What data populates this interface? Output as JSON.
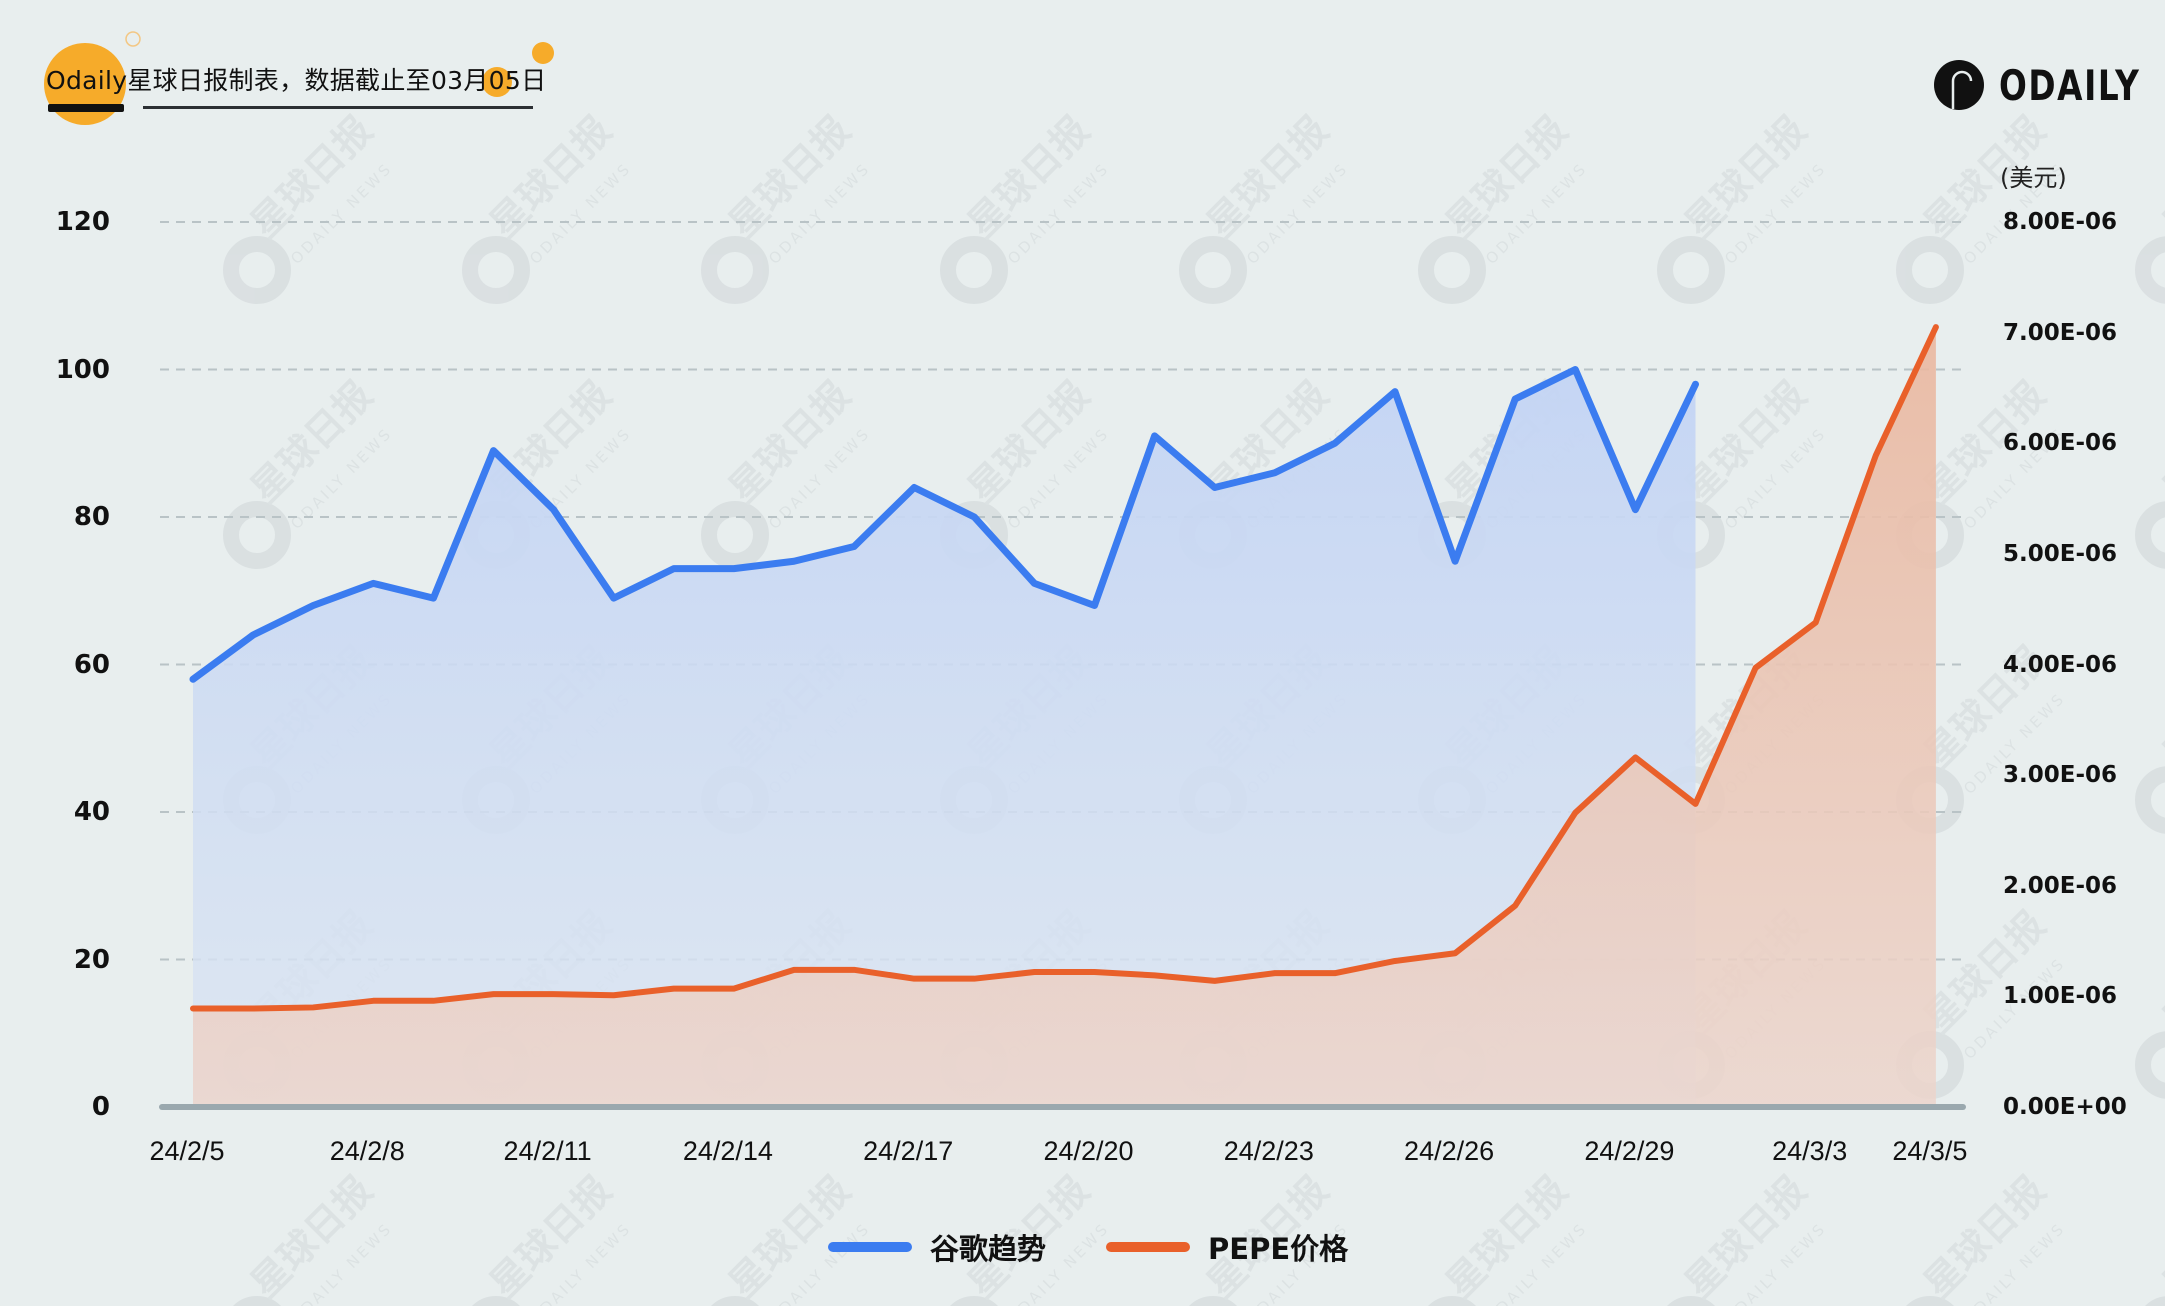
{
  "header": {
    "title_brand": "Odaily",
    "title_rest": "星球日报制表，数据截止至03月05日",
    "logo_text": "ODAILY",
    "accent_color": "#f6ab2a"
  },
  "watermark": {
    "text_cn": "星球日报",
    "text_en": "ODAILY NEWS"
  },
  "legend": {
    "items": [
      {
        "label": "谷歌趋势",
        "color": "#3b7cf0"
      },
      {
        "label": "PEPE价格",
        "color": "#e9602a"
      }
    ]
  },
  "axes": {
    "left_ticks": [
      "0",
      "20",
      "40",
      "60",
      "80",
      "100",
      "120"
    ],
    "right_unit": "(美元)",
    "right_ticks": [
      "0.00E+00",
      "1.00E-06",
      "2.00E-06",
      "3.00E-06",
      "4.00E-06",
      "5.00E-06",
      "6.00E-06",
      "7.00E-06",
      "8.00E-06"
    ],
    "x_ticks": [
      {
        "label": "24/2/5",
        "index": 0
      },
      {
        "label": "24/2/8",
        "index": 3
      },
      {
        "label": "24/2/11",
        "index": 6
      },
      {
        "label": "24/2/14",
        "index": 9
      },
      {
        "label": "24/2/17",
        "index": 12
      },
      {
        "label": "24/2/20",
        "index": 15
      },
      {
        "label": "24/2/23",
        "index": 18
      },
      {
        "label": "24/2/26",
        "index": 21
      },
      {
        "label": "24/2/29",
        "index": 24
      },
      {
        "label": "24/3/3",
        "index": 27
      },
      {
        "label": "24/3/5",
        "index": 29
      }
    ]
  },
  "chart_data": {
    "type": "area",
    "title": "Odaily星球日报制表，数据截止至03月05日",
    "x": [
      "24/2/5",
      "24/2/6",
      "24/2/7",
      "24/2/8",
      "24/2/9",
      "24/2/10",
      "24/2/11",
      "24/2/12",
      "24/2/13",
      "24/2/14",
      "24/2/15",
      "24/2/16",
      "24/2/17",
      "24/2/18",
      "24/2/19",
      "24/2/20",
      "24/2/21",
      "24/2/22",
      "24/2/23",
      "24/2/24",
      "24/2/25",
      "24/2/26",
      "24/2/27",
      "24/2/28",
      "24/2/29",
      "24/3/1",
      "24/3/2",
      "24/3/3",
      "24/3/4",
      "24/3/5"
    ],
    "series": [
      {
        "name": "谷歌趋势",
        "axis": "left",
        "color": "#3b7cf0",
        "values": [
          58,
          64,
          68,
          71,
          69,
          89,
          81,
          69,
          73,
          73,
          74,
          76,
          84,
          80,
          71,
          68,
          91,
          84,
          86,
          90,
          97,
          74,
          96,
          100,
          81,
          98,
          null,
          null,
          null,
          null
        ]
      },
      {
        "name": "PEPE价格",
        "axis": "right",
        "color": "#e9602a",
        "values": [
          8.9e-07,
          8.9e-07,
          9e-07,
          9.6e-07,
          9.6e-07,
          1.02e-06,
          1.02e-06,
          1.01e-06,
          1.07e-06,
          1.07e-06,
          1.24e-06,
          1.24e-06,
          1.16e-06,
          1.16e-06,
          1.22e-06,
          1.22e-06,
          1.19e-06,
          1.14e-06,
          1.21e-06,
          1.21e-06,
          1.32e-06,
          1.39e-06,
          1.82e-06,
          2.66e-06,
          3.16e-06,
          2.74e-06,
          3.97e-06,
          4.38e-06,
          5.89e-06,
          7.05e-06
        ]
      }
    ],
    "xlabel": "",
    "ylabel_left": "",
    "ylabel_right": "(美元)",
    "ylim_left": [
      0,
      120
    ],
    "ylim_right": [
      0,
      8e-06
    ],
    "grid": "horizontal dashed",
    "legend_position": "bottom"
  }
}
